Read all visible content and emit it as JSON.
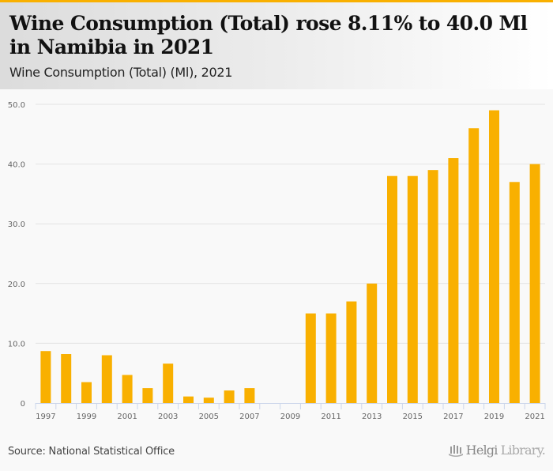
{
  "header": {
    "title": "Wine Consumption (Total) rose 8.11% to 40.0 Ml in Namibia in 2021",
    "subtitle": "Wine Consumption (Total) (Ml), 2021"
  },
  "footer": {
    "source": "Source: National Statistical Office",
    "logo_part1": "Helgi",
    "logo_part2": "Library."
  },
  "colors": {
    "accent": "#f9b000",
    "bar": "#f9b000",
    "grid": "#e3e3e3",
    "axis": "#ccd6eb"
  },
  "chart_data": {
    "type": "bar",
    "title": "Wine Consumption (Total) rose 8.11% to 40.0 Ml in Namibia in 2021",
    "subtitle": "Wine Consumption (Total) (Ml), 2021",
    "xlabel": "",
    "ylabel": "",
    "categories": [
      "1997",
      "1998",
      "1999",
      "2000",
      "2001",
      "2002",
      "2003",
      "2004",
      "2005",
      "2006",
      "2007",
      "2008",
      "2009",
      "2010",
      "2011",
      "2012",
      "2013",
      "2014",
      "2015",
      "2016",
      "2017",
      "2018",
      "2019",
      "2020",
      "2021"
    ],
    "values": [
      8.7,
      8.2,
      3.5,
      8.0,
      4.7,
      2.5,
      6.6,
      1.1,
      0.9,
      2.1,
      2.5,
      0,
      0,
      15.0,
      15.0,
      17.0,
      20.0,
      38.0,
      38.0,
      39.0,
      41.0,
      46.0,
      49.0,
      37.0,
      40.0
    ],
    "ylim": [
      0,
      50
    ],
    "yticks": [
      0,
      10,
      20,
      30,
      40,
      50
    ],
    "ytick_labels": [
      "0",
      "10.0",
      "20.0",
      "30.0",
      "40.0",
      "50.0"
    ],
    "xtick_labels": [
      "1997",
      "1999",
      "2001",
      "2003",
      "2005",
      "2007",
      "2009",
      "2011",
      "2013",
      "2015",
      "2017",
      "2019",
      "2021"
    ],
    "grid": true,
    "legend": "none"
  }
}
